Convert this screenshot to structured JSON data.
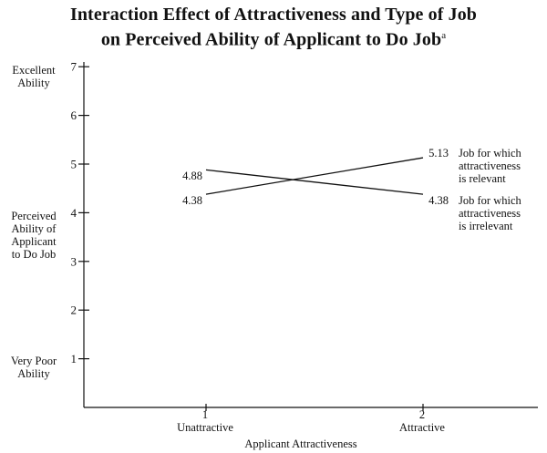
{
  "chart_data": {
    "type": "line",
    "title_line1": "Interaction Effect of Attractiveness and Type of Job",
    "title_line2": "on Perceived Ability of Applicant to Do Job",
    "title_footnote_mark": "a",
    "xlabel": "Applicant Attractiveness",
    "x": [
      1,
      2
    ],
    "x_tick_labels": [
      "Unattractive",
      "Attractive"
    ],
    "y_ticks": [
      1,
      2,
      3,
      4,
      5,
      6,
      7
    ],
    "ylim": [
      0,
      7.7
    ],
    "ylabel_lines": [
      "Perceived",
      "Ability of",
      "Applicant",
      "to Do Job"
    ],
    "y_top_label": [
      "Excellent",
      "Ability"
    ],
    "y_bottom_label": [
      "Very Poor",
      "Ability"
    ],
    "grid": false,
    "series": [
      {
        "name_lines": [
          "Job for which",
          "attractiveness",
          "is relevant"
        ],
        "values": [
          4.38,
          5.13
        ],
        "value_labels": [
          "4.38",
          "5.13"
        ]
      },
      {
        "name_lines": [
          "Job for which",
          "attractiveness",
          "is irrelevant"
        ],
        "values": [
          4.88,
          4.38
        ],
        "value_labels": [
          "4.88",
          "4.38"
        ]
      }
    ]
  }
}
